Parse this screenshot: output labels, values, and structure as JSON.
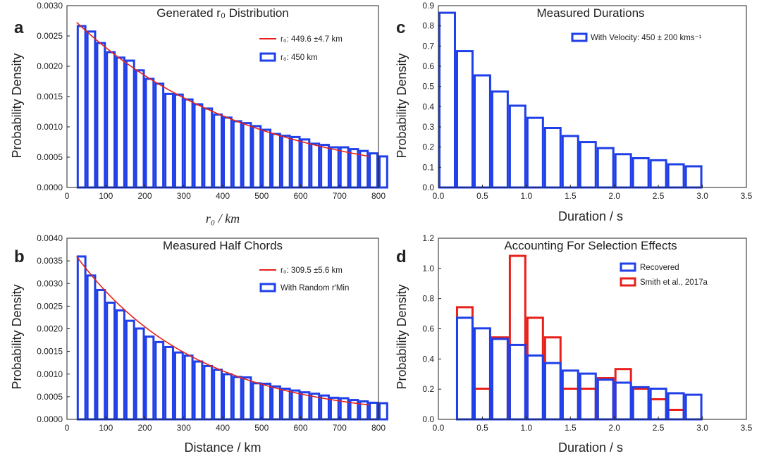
{
  "colors": {
    "blue": "#1f3fe8",
    "red": "#e8201a",
    "axis": "#222222"
  },
  "chart_data": [
    {
      "id": "a",
      "letter": "a",
      "type": "bar",
      "title": "Generated r₀ Distribution",
      "xlabel": "r₀ / km",
      "ylabel": "Probability Density",
      "xlim": [
        0,
        800
      ],
      "ylim": [
        0,
        0.003
      ],
      "xticks": [
        "0",
        "100",
        "200",
        "300",
        "400",
        "500",
        "600",
        "700",
        "800"
      ],
      "xtick_values": [
        0,
        100,
        200,
        300,
        400,
        500,
        600,
        700,
        800
      ],
      "yticks": [
        "0.0000",
        "0.0005",
        "0.0010",
        "0.0015",
        "0.0020",
        "0.0025",
        "0.0030"
      ],
      "ytick_values": [
        0,
        0.0005,
        0.001,
        0.0015,
        0.002,
        0.0025,
        0.003
      ],
      "bin_start": 25,
      "bin_width": 25,
      "values": [
        0.00268,
        0.00259,
        0.0024,
        0.00225,
        0.00216,
        0.00211,
        0.00195,
        0.00181,
        0.00173,
        0.00156,
        0.00155,
        0.00147,
        0.00139,
        0.00132,
        0.00122,
        0.00117,
        0.00111,
        0.00108,
        0.00103,
        0.00097,
        0.0009,
        0.00087,
        0.00085,
        0.00081,
        0.00074,
        0.00072,
        0.00068,
        0.00068,
        0.00065,
        0.00062,
        0.00058,
        0.00053
      ],
      "fit": {
        "scale": 450,
        "amplitude": 0.00288,
        "x_range": [
          25,
          775
        ]
      },
      "legend": [
        {
          "kind": "line",
          "color": "red",
          "label": "r₀: 449.6 ±4.7 km"
        },
        {
          "kind": "box",
          "color": "blue",
          "label": "r₀: 450 km"
        }
      ]
    },
    {
      "id": "b",
      "letter": "b",
      "type": "bar",
      "title": "Measured Half Chords",
      "xlabel": "Distance / km",
      "ylabel": "Probability Density",
      "xlim": [
        0,
        800
      ],
      "ylim": [
        0,
        0.004
      ],
      "xticks": [
        "0",
        "100",
        "200",
        "300",
        "400",
        "500",
        "600",
        "700",
        "800"
      ],
      "xtick_values": [
        0,
        100,
        200,
        300,
        400,
        500,
        600,
        700,
        800
      ],
      "yticks": [
        "0.0000",
        "0.0005",
        "0.0010",
        "0.0015",
        "0.0020",
        "0.0025",
        "0.0030",
        "0.0035",
        "0.0040"
      ],
      "ytick_values": [
        0,
        0.0005,
        0.001,
        0.0015,
        0.002,
        0.0025,
        0.003,
        0.0035,
        0.004
      ],
      "bin_start": 25,
      "bin_width": 25,
      "values": [
        0.00362,
        0.0032,
        0.00288,
        0.0026,
        0.00243,
        0.0022,
        0.00203,
        0.00185,
        0.00173,
        0.00162,
        0.0015,
        0.00143,
        0.0013,
        0.0012,
        0.00112,
        0.00102,
        0.00096,
        0.00095,
        0.00082,
        0.00081,
        0.00075,
        0.0007,
        0.00066,
        0.00062,
        0.00059,
        0.00055,
        0.0005,
        0.00049,
        0.00045,
        0.00042,
        0.00039,
        0.00038
      ],
      "fit": {
        "scale": 309.5,
        "amplitude": 0.0039,
        "x_range": [
          25,
          775
        ]
      },
      "legend": [
        {
          "kind": "line",
          "color": "red",
          "label": "r₀: 309.5 ±5.6 km"
        },
        {
          "kind": "box",
          "color": "blue",
          "label": "With Random r′Min"
        }
      ]
    },
    {
      "id": "c",
      "letter": "c",
      "type": "bar",
      "title": "Measured Durations",
      "xlabel": "Duration / s",
      "ylabel": "Probability Density",
      "xlim": [
        0,
        3.5
      ],
      "ylim": [
        0,
        0.9
      ],
      "xticks": [
        "0.0",
        "0.5",
        "1.0",
        "1.5",
        "2.0",
        "2.5",
        "3.0",
        "3.5"
      ],
      "xtick_values": [
        0,
        0.5,
        1,
        1.5,
        2,
        2.5,
        3,
        3.5
      ],
      "yticks": [
        "0.0",
        "0.1",
        "0.2",
        "0.3",
        "0.4",
        "0.5",
        "0.6",
        "0.7",
        "0.8",
        "0.9"
      ],
      "ytick_values": [
        0,
        0.1,
        0.2,
        0.3,
        0.4,
        0.5,
        0.6,
        0.7,
        0.8,
        0.9
      ],
      "bin_start": 0,
      "bin_width": 0.2,
      "values": [
        0.87,
        0.68,
        0.56,
        0.48,
        0.41,
        0.35,
        0.3,
        0.26,
        0.23,
        0.2,
        0.17,
        0.15,
        0.14,
        0.12,
        0.11
      ],
      "legend": [
        {
          "kind": "box",
          "color": "blue",
          "label": "With Velocity: 450 ± 200 kms⁻¹"
        }
      ]
    },
    {
      "id": "d",
      "letter": "d",
      "type": "bar",
      "title": "Accounting For Selection Effects",
      "xlabel": "Duration / s",
      "ylabel": "Probability Density",
      "xlim": [
        0,
        3.5
      ],
      "ylim": [
        0,
        1.2
      ],
      "xticks": [
        "0.0",
        "0.5",
        "1.0",
        "1.5",
        "2.0",
        "2.5",
        "3.0",
        "3.5"
      ],
      "xtick_values": [
        0,
        0.5,
        1,
        1.5,
        2,
        2.5,
        3,
        3.5
      ],
      "yticks": [
        "0.0",
        "0.2",
        "0.4",
        "0.6",
        "0.8",
        "1.0",
        "1.2"
      ],
      "ytick_values": [
        0,
        0.2,
        0.4,
        0.6,
        0.8,
        1.0,
        1.2
      ],
      "series": [
        {
          "name": "Smith et al., 2017a",
          "color": "red",
          "bin_start": 0.2,
          "bin_width": 0.2,
          "values": [
            0.75,
            0.21,
            0.55,
            1.09,
            0.68,
            0.55,
            0.21,
            0.21,
            0.28,
            0.34,
            0.21,
            0.14,
            0.07
          ]
        },
        {
          "name": "Recovered",
          "color": "blue",
          "bin_start": 0.2,
          "bin_width": 0.2,
          "values": [
            0.68,
            0.61,
            0.54,
            0.5,
            0.43,
            0.38,
            0.33,
            0.31,
            0.27,
            0.25,
            0.22,
            0.21,
            0.18,
            0.17
          ]
        }
      ],
      "legend": [
        {
          "kind": "box",
          "color": "blue",
          "label": "Recovered"
        },
        {
          "kind": "box",
          "color": "red",
          "label": "Smith et al., 2017a"
        }
      ]
    }
  ]
}
